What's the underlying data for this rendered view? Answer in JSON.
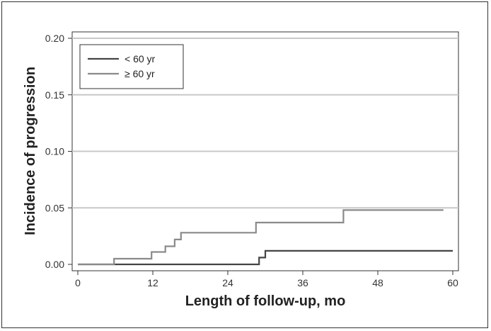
{
  "chart_data": {
    "type": "line",
    "step": true,
    "xlabel": "Length of follow-up, mo",
    "ylabel": "Incidence of progression",
    "xlim": [
      0,
      60
    ],
    "ylim": [
      0,
      0.2
    ],
    "xticks": [
      0,
      12,
      24,
      36,
      48,
      60
    ],
    "xtick_labels": [
      "0",
      "12",
      "24",
      "36",
      "48",
      "60"
    ],
    "yticks": [
      0,
      0.05,
      0.1,
      0.15,
      0.2
    ],
    "ytick_labels": [
      "0.00",
      "0.05",
      "0.10",
      "0.15",
      "0.20"
    ],
    "grid": "horizontal",
    "legend_position": "top-left",
    "series": [
      {
        "name": "< 60 yr",
        "color": "#444444",
        "x": [
          0,
          29,
          29,
          30,
          30,
          60
        ],
        "y": [
          0,
          0,
          0.006,
          0.006,
          0.012,
          0.012
        ]
      },
      {
        "name": "≥ 60 yr",
        "color": "#8a8a8a",
        "x": [
          0,
          5.8,
          5.8,
          11.8,
          11.8,
          14,
          14,
          15.5,
          15.5,
          16.5,
          16.5,
          28.5,
          28.5,
          42.5,
          42.5,
          58.5
        ],
        "y": [
          0,
          0,
          0.005,
          0.005,
          0.011,
          0.011,
          0.016,
          0.016,
          0.022,
          0.022,
          0.028,
          0.028,
          0.037,
          0.037,
          0.048,
          0.048
        ]
      }
    ]
  }
}
